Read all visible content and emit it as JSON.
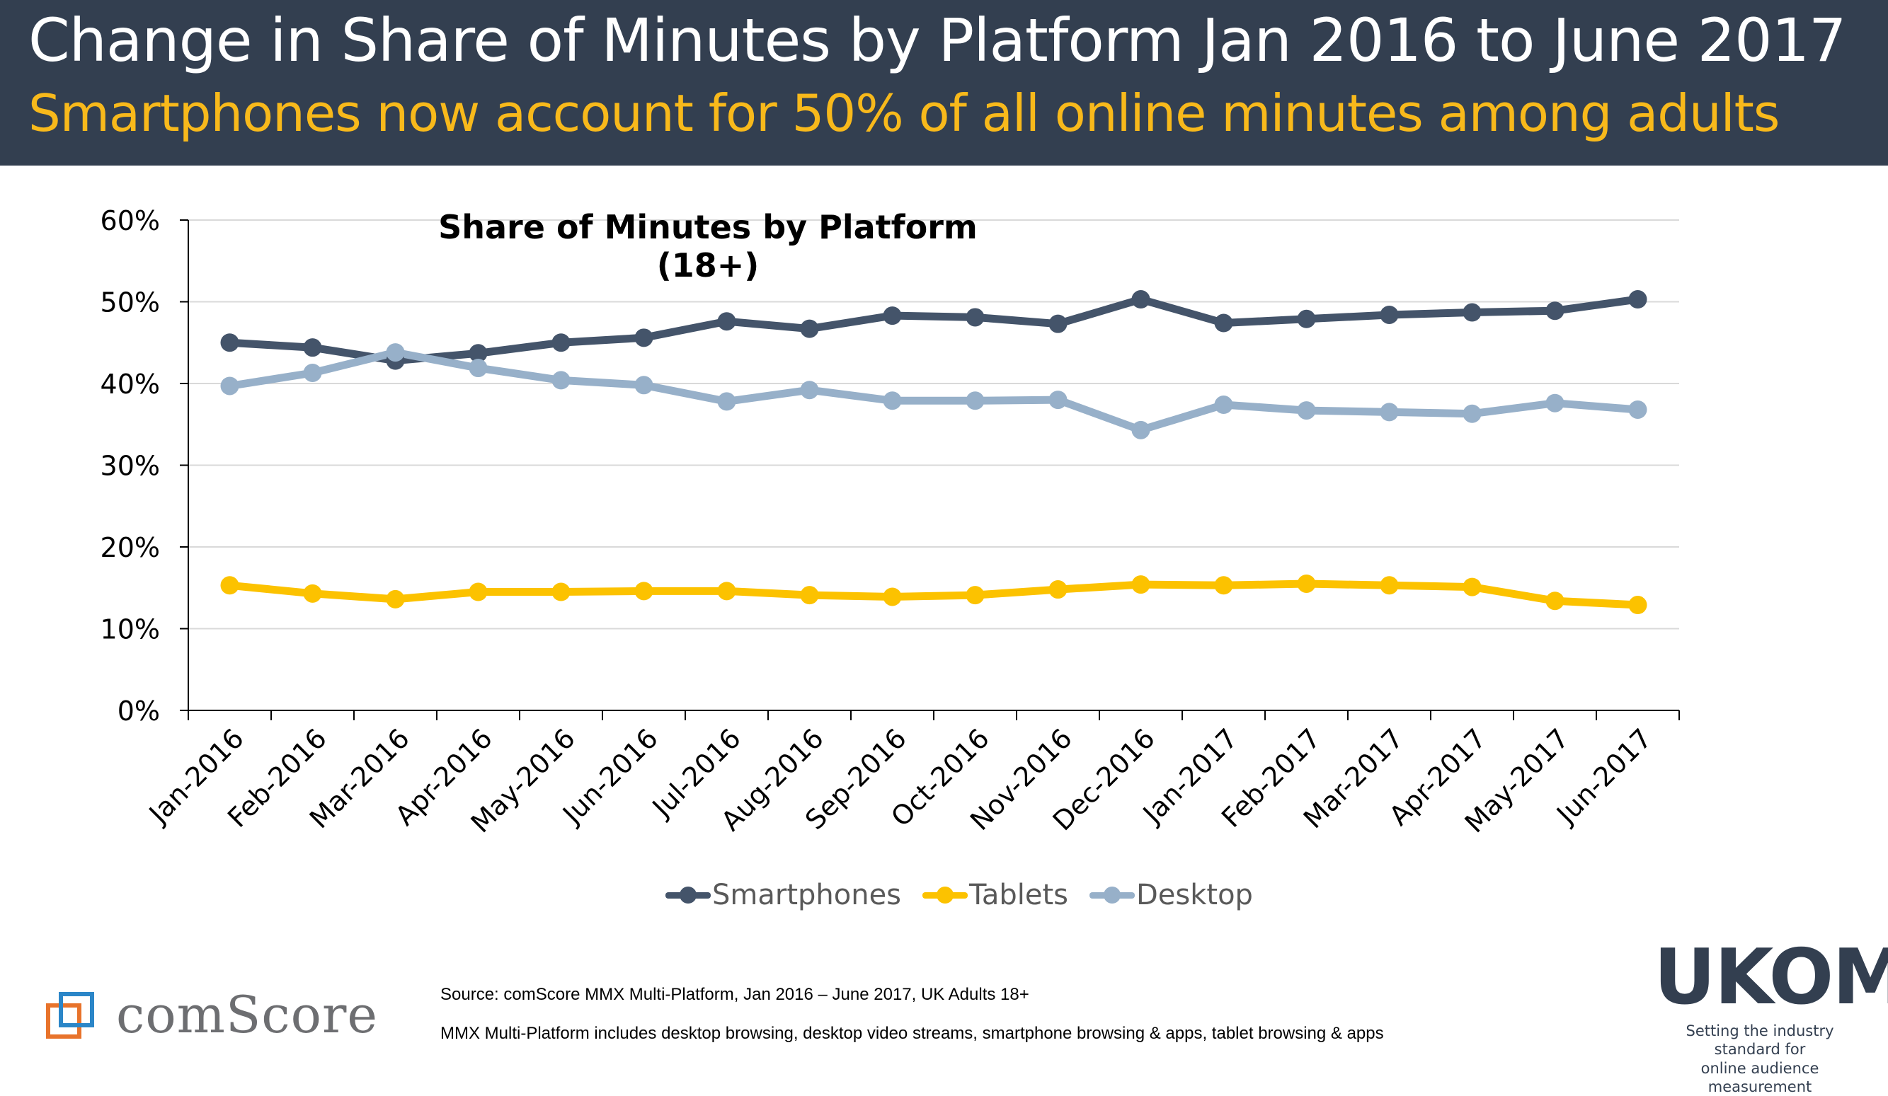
{
  "header": {
    "title": "Change in Share of Minutes by Platform Jan 2016 to June 2017",
    "subtitle": "Smartphones now account for 50% of all online minutes among adults"
  },
  "chart_data": {
    "type": "line",
    "title": "Share of Minutes by Platform (18+)",
    "xlabel": "",
    "ylabel": "",
    "ylim": [
      0,
      60
    ],
    "yticks": [
      "0%",
      "10%",
      "20%",
      "30%",
      "40%",
      "50%",
      "60%"
    ],
    "grid": true,
    "legend_position": "bottom",
    "categories": [
      "Jan-2016",
      "Feb-2016",
      "Mar-2016",
      "Apr-2016",
      "May-2016",
      "Jun-2016",
      "Jul-2016",
      "Aug-2016",
      "Sep-2016",
      "Oct-2016",
      "Nov-2016",
      "Dec-2016",
      "Jan-2017",
      "Feb-2017",
      "Mar-2017",
      "Apr-2017",
      "May-2017",
      "Jun-2017"
    ],
    "series": [
      {
        "name": "Smartphones",
        "color": "#44546a",
        "values": [
          45.0,
          44.4,
          42.8,
          43.7,
          45.0,
          45.6,
          47.6,
          46.7,
          48.3,
          48.1,
          47.3,
          50.3,
          47.4,
          47.9,
          48.4,
          48.7,
          48.9,
          50.3
        ]
      },
      {
        "name": "Tablets",
        "color": "#fcc200",
        "values": [
          15.3,
          14.3,
          13.6,
          14.5,
          14.5,
          14.6,
          14.6,
          14.1,
          13.9,
          14.1,
          14.8,
          15.4,
          15.3,
          15.5,
          15.3,
          15.1,
          13.4,
          12.9
        ]
      },
      {
        "name": "Desktop",
        "color": "#97b0c9",
        "values": [
          39.7,
          41.3,
          43.8,
          41.9,
          40.4,
          39.8,
          37.8,
          39.2,
          37.9,
          37.9,
          38.0,
          34.3,
          37.4,
          36.7,
          36.5,
          36.3,
          37.6,
          36.8
        ]
      }
    ]
  },
  "footer": {
    "source": "Source: comScore MMX Multi-Platform, Jan 2016 – June 2017, UK Adults 18+",
    "note": "MMX Multi-Platform includes desktop browsing, desktop video streams, smartphone browsing & apps, tablet browsing & apps",
    "comscore_logo": "comScore",
    "ukom_logo": "UKOM",
    "ukom_tagline_1": "Setting the industry standard for",
    "ukom_tagline_2": "online audience measurement"
  }
}
